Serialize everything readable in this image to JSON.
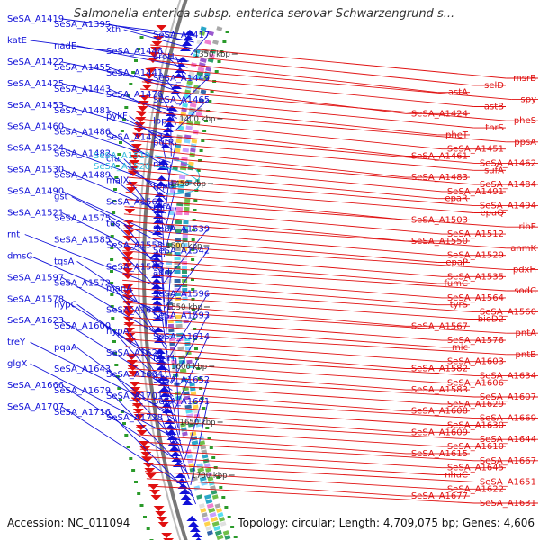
{
  "title": "Salmonella enterica subsp. enterica serovar Schwarzengrund s...",
  "footer": {
    "accession": "Accession: NC_011094",
    "summary": "Topology: circular; Length: 4,709,075 bp; Genes: 4,606"
  },
  "colors": {
    "minus_strand": "#1010d8",
    "plus_strand": "#e01010",
    "highlight": "#33bbdd",
    "backbone": "#777777"
  },
  "kbp_ticks": [
    "1350 kbp",
    "1400 kbp",
    "1450 kbp",
    "1500 kbp",
    "1550 kbp",
    "1600 kbp",
    "1650 kbp",
    "1700 kbp"
  ],
  "blue_labels": [
    "SeSA_A1419",
    "SeSA_A1395",
    "xth",
    "SeSA_A1417",
    "katE",
    "nadE",
    "SeSA_A1446",
    "aroH",
    "SeSA_A1422",
    "SeSA_A1455",
    "SeSA_A1441",
    "SeSA_A1449",
    "SeSA_A1425",
    "SeSA_A1443",
    "SeSA_A1476",
    "SeSA_A1465",
    "SeSA_A1453",
    "SeSA_A1481",
    "pykF",
    "lpp",
    "SeSA_A1460",
    "SeSA_A1486",
    "SeSA_A1473",
    "purR",
    "SeSA_A1524",
    "SeSA_A1482",
    "cfa",
    "nth",
    "SeSA_A1530",
    "SeSA_A1489",
    "malX",
    "tppB",
    "SeSA_A1490",
    "gst",
    "SeSA_A1562",
    "rnfA",
    "SeSA_A1521",
    "SeSA_A1575",
    "tus",
    "SeSA_A1539",
    "rnt",
    "SeSA_A1585",
    "SeSA_A1558",
    "SeSA_A1542",
    "dmsC",
    "tqsA",
    "SeSA_A1565",
    "add",
    "SeSA_A1597",
    "SeSA_A1572",
    "manA",
    "SeSA_A1596",
    "SeSA_A1578",
    "hypC",
    "SeSA_A1611",
    "SeSA_A1593",
    "SeSA_A1623",
    "SeSA_A1600",
    "hypA",
    "SeSA_A1614",
    "treY",
    "pqaA",
    "SeSA_A1628",
    "fdnH",
    "glgX",
    "SeSA_A1643",
    "SeSA_A1684",
    "SeSA_A1652",
    "SeSA_A1666",
    "SeSA_A1679",
    "SeSA_A1701",
    "SeSA_A1691",
    "SeSA_A1707",
    "SeSA_A1716",
    "SeSA_A1728"
  ],
  "cyan_labels": [
    "SeSA_A1519",
    "SeSA_A1520"
  ],
  "red_labels": [
    "msrB",
    "selD",
    "astA",
    "spy",
    "astB",
    "SeSA_A1424",
    "pheS",
    "thrS",
    "pheT",
    "ppsA",
    "SeSA_A1451",
    "SeSA_A1461",
    "SeSA_A1462",
    "sufA",
    "SeSA_A1483",
    "SeSA_A1484",
    "SeSA_A1491",
    "epaR",
    "SeSA_A1494",
    "epaQ",
    "SeSA_A1503",
    "ribE",
    "SeSA_A1512",
    "SeSA_A1550",
    "anmK",
    "SeSA_A1529",
    "epaP",
    "pdxH",
    "SeSA_A1535",
    "fumC",
    "sodC",
    "SeSA_A1564",
    "tyrS",
    "SeSA_A1560",
    "bioD2",
    "SeSA_A1567",
    "pntA",
    "SeSA_A1576",
    "mic",
    "pntB",
    "SeSA_A1603",
    "SeSA_A1582",
    "SeSA_A1634",
    "SeSA_A1606",
    "SeSA_A1583",
    "SeSA_A1607",
    "SeSA_A1629",
    "SeSA_A1608",
    "SeSA_A1669",
    "SeSA_A1630",
    "SeSA_A1609",
    "SeSA_A1644",
    "SeSA_A1610",
    "SeSA_A1615",
    "SeSA_A1667",
    "SeSA_A1645",
    "nhaC",
    "SeSA_A1651",
    "SeSA_A1622",
    "SeSA_A1677",
    "SeSA_A1631"
  ]
}
